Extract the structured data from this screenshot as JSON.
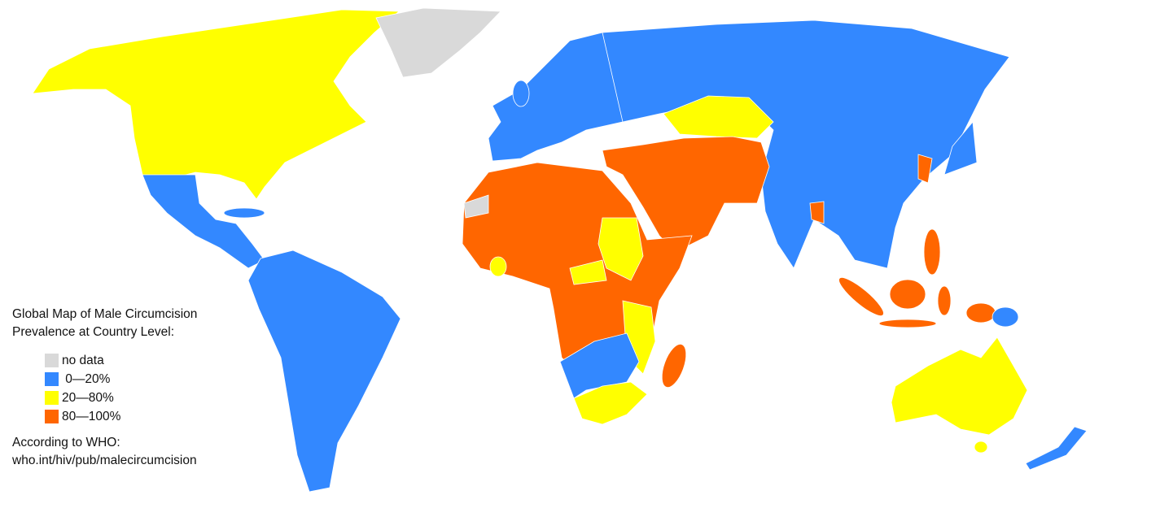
{
  "legend": {
    "title_line1": "Global Map of Male Circumcision",
    "title_line2": "Prevalence at Country Level:",
    "items": [
      {
        "label": "no data",
        "color": "#D9D9D9"
      },
      {
        "label": " 0—20%",
        "color": "#3388FF"
      },
      {
        "label": "20—80%",
        "color": "#FFFF00"
      },
      {
        "label": "80—100%",
        "color": "#FF6600"
      }
    ],
    "source_line1": "According to WHO:",
    "source_line2": "who.int/hiv/pub/malecircumcision"
  }
}
